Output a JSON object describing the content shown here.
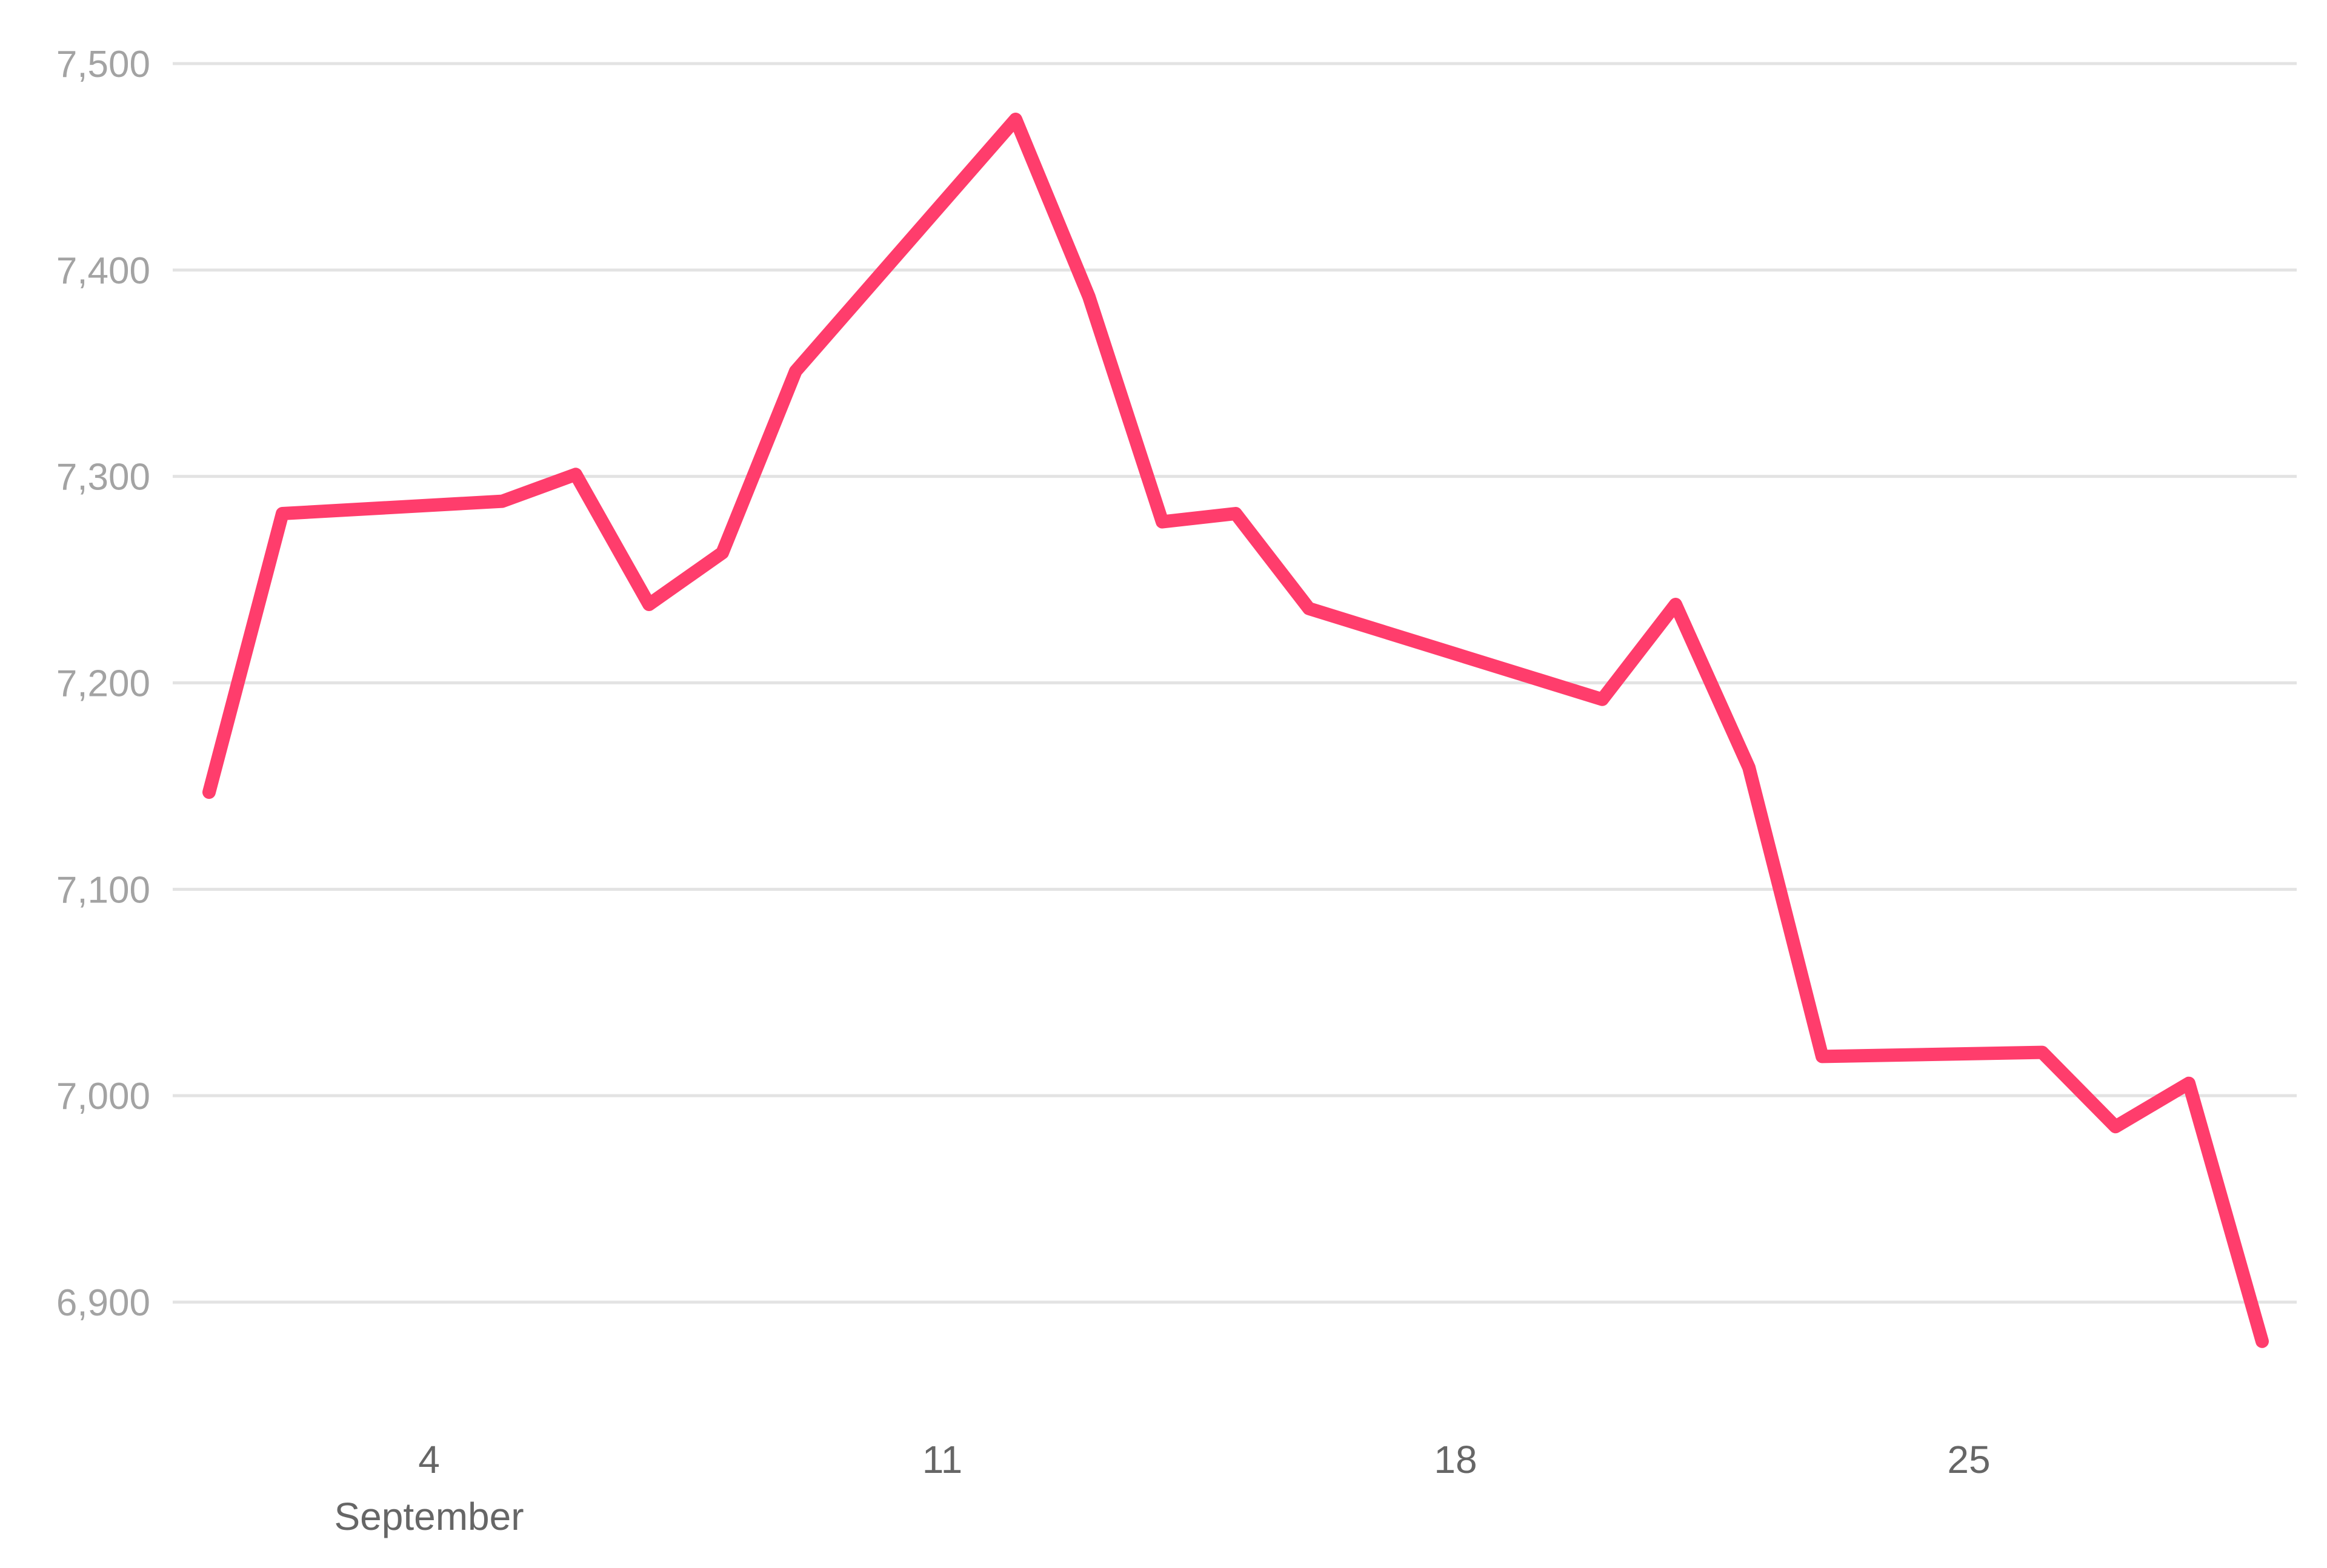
{
  "chart_data": {
    "type": "line",
    "title": "",
    "xlabel": "",
    "ylabel": "",
    "x_axis": {
      "kind": "date",
      "range": [
        "2017-09-01",
        "2017-09-29"
      ],
      "ticks": [
        {
          "date": "2017-09-04",
          "label": "4",
          "sublabel": "September"
        },
        {
          "date": "2017-09-11",
          "label": "11"
        },
        {
          "date": "2017-09-18",
          "label": "18"
        },
        {
          "date": "2017-09-25",
          "label": "25"
        }
      ]
    },
    "y_axis": {
      "range": [
        6850,
        7500
      ],
      "ticks": [
        {
          "value": 6900,
          "label": "6,900"
        },
        {
          "value": 7000,
          "label": "7,000"
        },
        {
          "value": 7100,
          "label": "7,100"
        },
        {
          "value": 7200,
          "label": "7,200"
        },
        {
          "value": 7300,
          "label": "7,300"
        },
        {
          "value": 7400,
          "label": "7,400"
        },
        {
          "value": 7500,
          "label": "7,500"
        }
      ]
    },
    "grid": true,
    "legend": "none",
    "series": [
      {
        "color": "#ff3d6c",
        "points": [
          {
            "x": "2017-09-01",
            "y": 7147
          },
          {
            "x": "2017-09-02",
            "y": 7282
          },
          {
            "x": "2017-09-05",
            "y": 7288
          },
          {
            "x": "2017-09-06",
            "y": 7301
          },
          {
            "x": "2017-09-07",
            "y": 7238
          },
          {
            "x": "2017-09-08",
            "y": 7263
          },
          {
            "x": "2017-09-09",
            "y": 7351
          },
          {
            "x": "2017-09-12",
            "y": 7473
          },
          {
            "x": "2017-09-13",
            "y": 7387
          },
          {
            "x": "2017-09-14",
            "y": 7278
          },
          {
            "x": "2017-09-15",
            "y": 7282
          },
          {
            "x": "2017-09-16",
            "y": 7236
          },
          {
            "x": "2017-09-20",
            "y": 7192
          },
          {
            "x": "2017-09-21",
            "y": 7238
          },
          {
            "x": "2017-09-22",
            "y": 7159
          },
          {
            "x": "2017-09-23",
            "y": 7019
          },
          {
            "x": "2017-09-26",
            "y": 7021
          },
          {
            "x": "2017-09-27",
            "y": 6985
          },
          {
            "x": "2017-09-28",
            "y": 7006
          },
          {
            "x": "2017-09-29",
            "y": 6881
          }
        ]
      }
    ]
  }
}
